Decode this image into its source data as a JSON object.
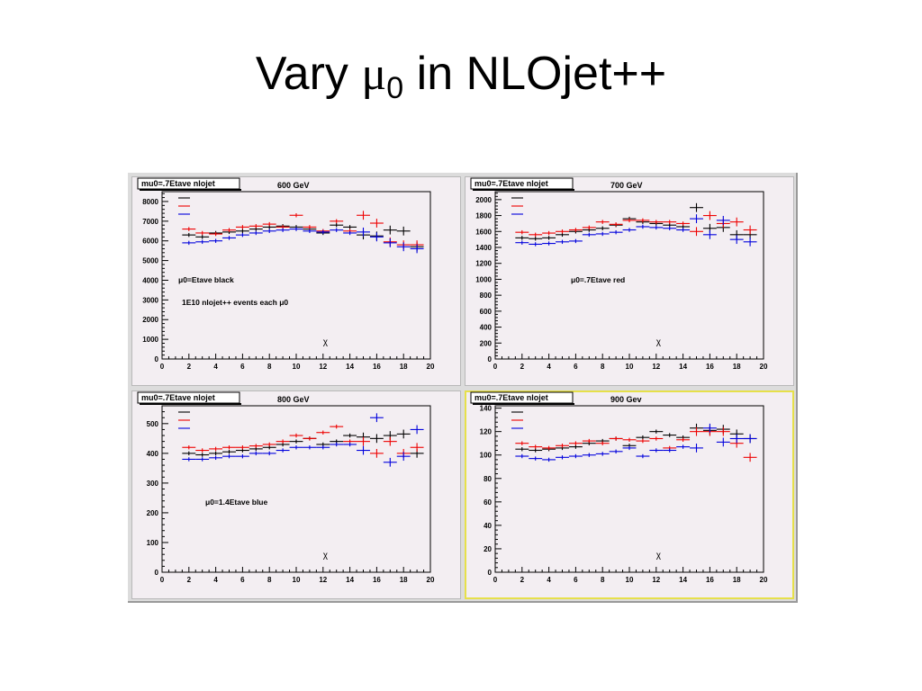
{
  "title": {
    "prefix": "Vary ",
    "mu": "μ",
    "sub": "0",
    "suffix": " in NLOjet++"
  },
  "colors": {
    "black": "#000000",
    "red": "#ee0000",
    "blue": "#0000dd",
    "frame": "#f3eef2",
    "highlight": "#e6e04a"
  },
  "chart_data": [
    {
      "type": "scatter",
      "stat_box": "mu0=.7Etave nlojet",
      "title": "600 GeV",
      "xlabel": "χ",
      "xlim": [
        0,
        20
      ],
      "ylim": [
        0,
        8500
      ],
      "xticks": [
        0,
        2,
        4,
        6,
        8,
        10,
        12,
        14,
        16,
        18,
        20
      ],
      "yticks": [
        0,
        1000,
        2000,
        3000,
        4000,
        5000,
        6000,
        7000,
        8000
      ],
      "x": [
        2,
        3,
        4,
        5,
        6,
        7,
        8,
        9,
        10,
        11,
        12,
        13,
        14,
        15,
        16,
        17,
        18,
        19
      ],
      "annotations": [
        "μ0=Etave black",
        "1E10 nlojet++ events each μ0"
      ],
      "series": [
        {
          "name": "μ0=Etave",
          "values": [
            6300,
            6200,
            6400,
            6450,
            6500,
            6600,
            6700,
            6750,
            6700,
            6600,
            6400,
            6800,
            6700,
            6300,
            6250,
            6550,
            6500,
            5700
          ]
        },
        {
          "name": "μ0=.7Etave",
          "values": [
            6600,
            6400,
            6350,
            6550,
            6700,
            6750,
            6850,
            6700,
            7300,
            6700,
            6500,
            7000,
            6500,
            7300,
            6900,
            5950,
            5800,
            5800
          ]
        },
        {
          "name": "μ0=1.4Etave",
          "values": [
            5900,
            5950,
            6000,
            6150,
            6300,
            6400,
            6500,
            6550,
            6600,
            6500,
            6450,
            6550,
            6400,
            6450,
            6200,
            5900,
            5700,
            5600
          ]
        }
      ]
    },
    {
      "type": "scatter",
      "stat_box": "mu0=.7Etave nlojet",
      "title": "700 GeV",
      "xlabel": "χ",
      "xlim": [
        0,
        20
      ],
      "ylim": [
        0,
        2100
      ],
      "xticks": [
        0,
        2,
        4,
        6,
        8,
        10,
        12,
        14,
        16,
        18,
        20
      ],
      "yticks": [
        0,
        200,
        400,
        600,
        800,
        1000,
        1200,
        1400,
        1600,
        1800,
        2000
      ],
      "x": [
        2,
        3,
        4,
        5,
        6,
        7,
        8,
        9,
        10,
        11,
        12,
        13,
        14,
        15,
        16,
        17,
        18,
        19
      ],
      "annotations": [
        "μ0=.7Etave red"
      ],
      "series": [
        {
          "name": "μ0=Etave",
          "values": [
            1520,
            1510,
            1520,
            1560,
            1600,
            1620,
            1640,
            1680,
            1760,
            1720,
            1700,
            1680,
            1660,
            1900,
            1640,
            1650,
            1560,
            1560
          ]
        },
        {
          "name": "μ0=.7Etave",
          "values": [
            1590,
            1560,
            1580,
            1600,
            1620,
            1650,
            1720,
            1690,
            1740,
            1740,
            1720,
            1720,
            1700,
            1600,
            1800,
            1700,
            1720,
            1620
          ]
        },
        {
          "name": "μ0=1.4Etave",
          "values": [
            1460,
            1440,
            1450,
            1470,
            1480,
            1560,
            1570,
            1590,
            1620,
            1660,
            1650,
            1640,
            1620,
            1760,
            1560,
            1740,
            1500,
            1470
          ]
        }
      ]
    },
    {
      "type": "scatter",
      "stat_box": "mu0=.7Etave nlojet",
      "title": "800 GeV",
      "xlabel": "χ",
      "xlim": [
        0,
        20
      ],
      "ylim": [
        0,
        560
      ],
      "xticks": [
        0,
        2,
        4,
        6,
        8,
        10,
        12,
        14,
        16,
        18,
        20
      ],
      "yticks": [
        0,
        100,
        200,
        300,
        400,
        500
      ],
      "x": [
        2,
        3,
        4,
        5,
        6,
        7,
        8,
        9,
        10,
        11,
        12,
        13,
        14,
        15,
        16,
        17,
        18,
        19
      ],
      "annotations": [
        "μ0=1.4Etave blue"
      ],
      "series": [
        {
          "name": "μ0=Etave",
          "values": [
            400,
            395,
            400,
            405,
            410,
            415,
            420,
            430,
            440,
            450,
            430,
            440,
            460,
            455,
            450,
            460,
            465,
            400
          ]
        },
        {
          "name": "μ0=.7Etave",
          "values": [
            420,
            410,
            415,
            420,
            420,
            425,
            430,
            440,
            460,
            450,
            470,
            490,
            440,
            440,
            400,
            440,
            400,
            420
          ]
        },
        {
          "name": "μ0=1.4Etave",
          "values": [
            380,
            380,
            385,
            390,
            390,
            400,
            400,
            410,
            420,
            420,
            420,
            430,
            430,
            410,
            520,
            370,
            390,
            480
          ]
        }
      ]
    },
    {
      "type": "scatter",
      "stat_box": "mu0=.7Etave nlojet",
      "title": "900 Gev",
      "xlabel": "χ",
      "xlim": [
        0,
        20
      ],
      "ylim": [
        0,
        142
      ],
      "xticks": [
        0,
        2,
        4,
        6,
        8,
        10,
        12,
        14,
        16,
        18,
        20
      ],
      "yticks": [
        0,
        20,
        40,
        60,
        80,
        100,
        120,
        140
      ],
      "x": [
        2,
        3,
        4,
        5,
        6,
        7,
        8,
        9,
        10,
        11,
        12,
        13,
        14,
        15,
        16,
        17,
        18,
        19
      ],
      "annotations": [],
      "highlighted": true,
      "series": [
        {
          "name": "μ0=Etave",
          "values": [
            105,
            104,
            105,
            106,
            107,
            110,
            112,
            114,
            108,
            115,
            120,
            117,
            115,
            123,
            121,
            122,
            118,
            114
          ]
        },
        {
          "name": "μ0=.7Etave",
          "values": [
            110,
            107,
            106,
            108,
            110,
            112,
            110,
            114,
            113,
            112,
            114,
            106,
            113,
            120,
            120,
            120,
            110,
            98
          ]
        },
        {
          "name": "μ0=1.4Etave",
          "values": [
            99,
            97,
            96,
            98,
            99,
            100,
            101,
            103,
            106,
            99,
            104,
            104,
            107,
            106,
            123,
            111,
            114,
            114
          ]
        }
      ]
    }
  ]
}
